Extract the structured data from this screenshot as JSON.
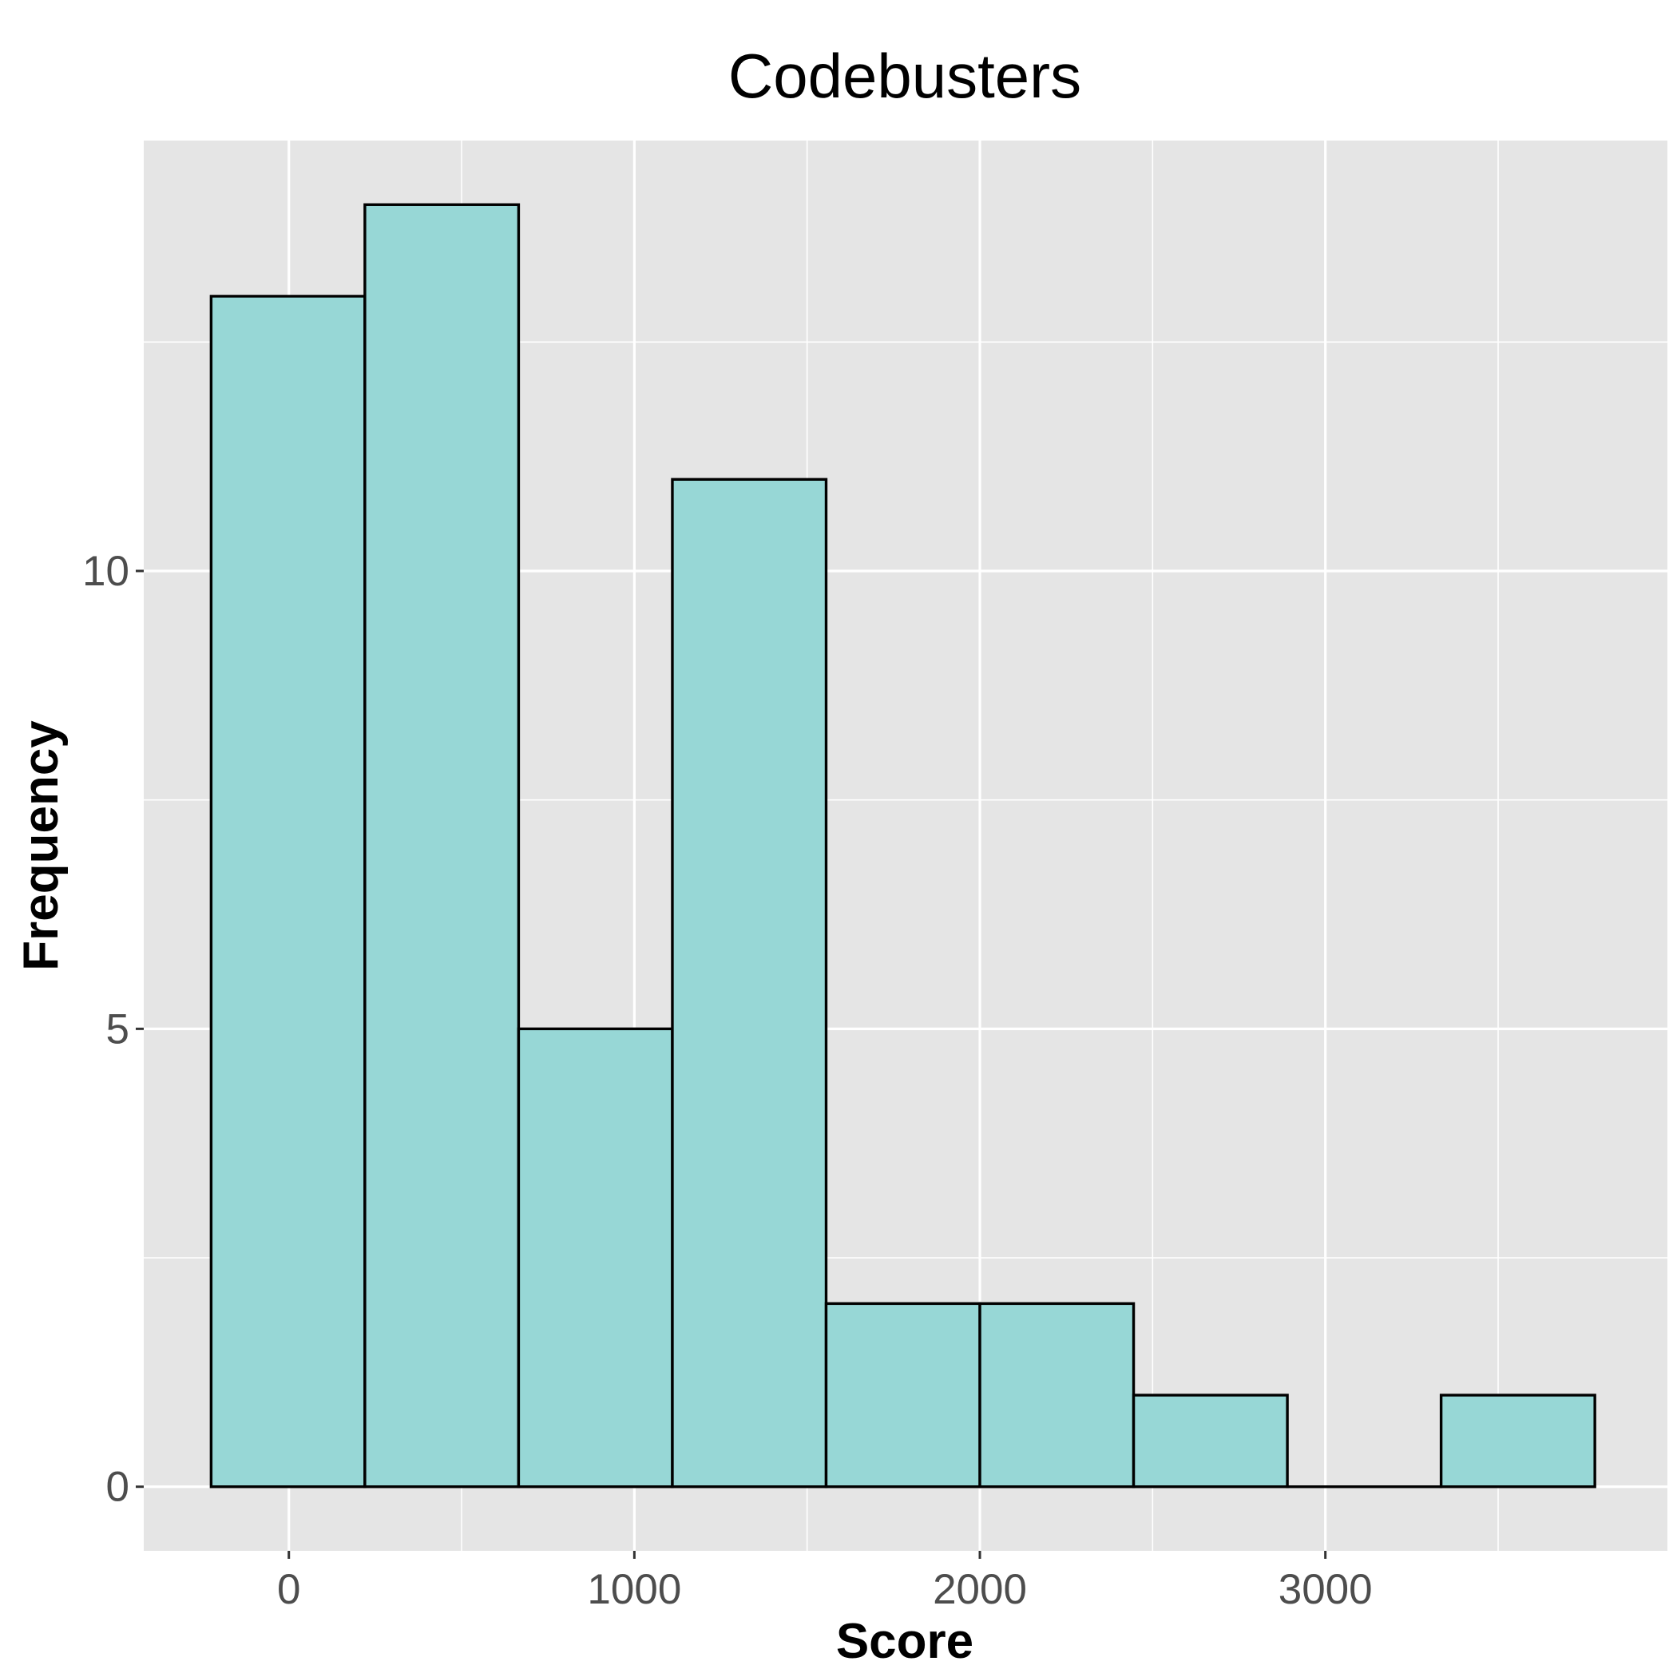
{
  "chart_data": {
    "type": "bar",
    "subtype": "histogram",
    "title": "Codebusters",
    "xlabel": "Score",
    "ylabel": "Frequency",
    "bins": [
      {
        "start": -225,
        "end": 220,
        "count": 13
      },
      {
        "start": 220,
        "end": 665,
        "count": 14
      },
      {
        "start": 665,
        "end": 1110,
        "count": 5
      },
      {
        "start": 1110,
        "end": 1555,
        "count": 11
      },
      {
        "start": 1555,
        "end": 2000,
        "count": 2
      },
      {
        "start": 2000,
        "end": 2445,
        "count": 2
      },
      {
        "start": 2445,
        "end": 2890,
        "count": 1
      },
      {
        "start": 2890,
        "end": 3335,
        "count": 0
      },
      {
        "start": 3335,
        "end": 3780,
        "count": 1
      }
    ],
    "xlim": [
      -420,
      3990
    ],
    "ylim": [
      -0.7,
      14.7
    ],
    "x_ticks": [
      0,
      1000,
      2000,
      3000
    ],
    "x_tick_labels": [
      "0",
      "1000",
      "2000",
      "3000"
    ],
    "y_ticks": [
      0,
      5,
      10
    ],
    "y_tick_labels": [
      "0",
      "5",
      "10"
    ],
    "x_minor_grid": [
      500,
      1500,
      2500,
      3500
    ],
    "y_minor_grid": [
      2.5,
      7.5,
      12.5
    ],
    "grid": true,
    "legend": "none",
    "colors": {
      "bar_fill": "#97d7d6",
      "bar_outline": "#000000",
      "panel_background": "#e5e5e5",
      "grid": "#ffffff"
    }
  }
}
